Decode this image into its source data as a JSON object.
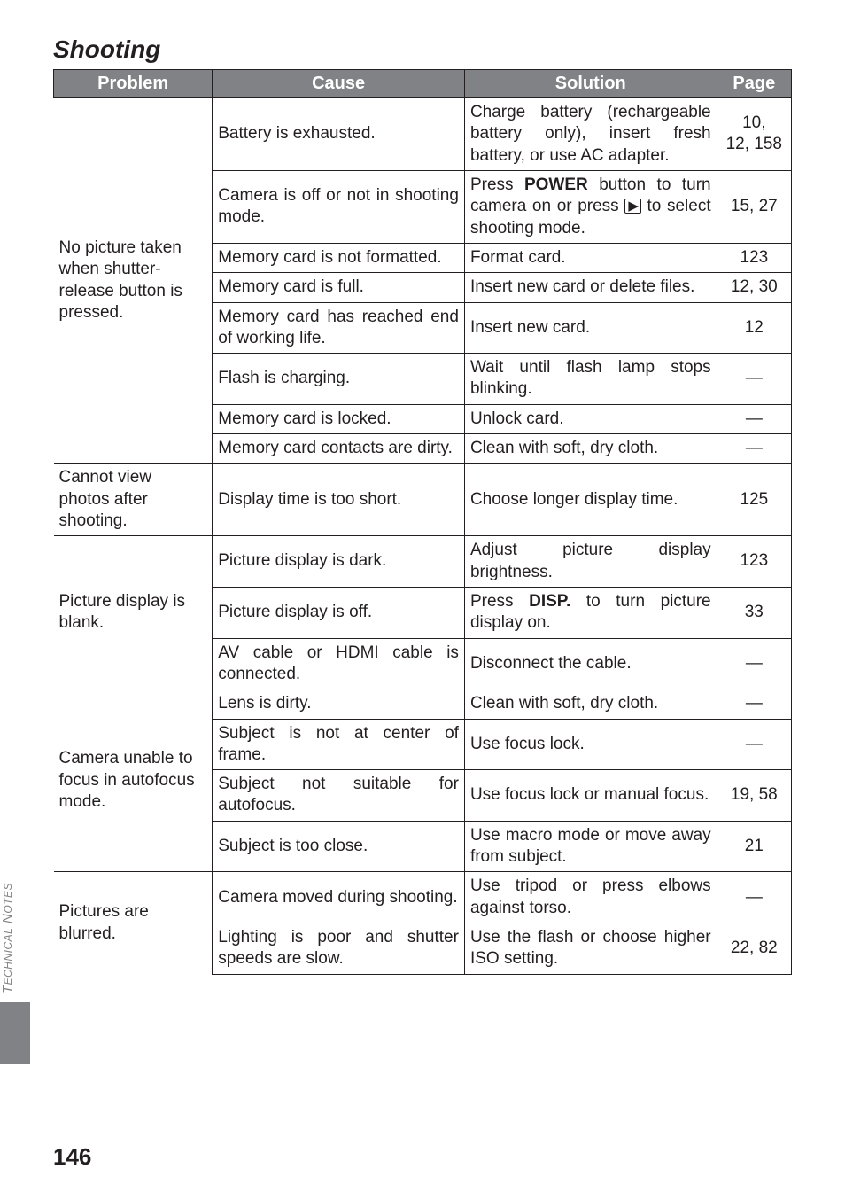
{
  "section_title": "Shooting",
  "page_number": "146",
  "side_tab_label_html": "T<span style='font-size:12px'>ECHNICAL</span> N<span style='font-size:12px'>OTES</span>",
  "headers": {
    "problem": "Problem",
    "cause": "Cause",
    "solution": "Solution",
    "page": "Page"
  },
  "groups": [
    {
      "problem": "No picture taken when shutter-release button is pressed.",
      "rows": [
        {
          "cause": "Battery is exhausted.",
          "solution": "Charge battery (rechargeable battery only), insert fresh battery, or use AC adapter.",
          "page": "10,\n12, 158"
        },
        {
          "cause": "Camera is off or not in shooting mode.",
          "solution_html": "Press <b>POWER</b> button to turn camera on or press <span class='play-icon'>▶</span> to select shooting mode.",
          "page": "15, 27"
        },
        {
          "cause": "Memory card is not formatted.",
          "solution": "Format card.",
          "page": "123"
        },
        {
          "cause": "Memory card is full.",
          "solution": "Insert new card or delete files.",
          "page": "12, 30"
        },
        {
          "cause": "Memory card has reached end of working life.",
          "solution": "Insert new card.",
          "page": "12"
        },
        {
          "cause": "Flash is charging.",
          "solution": "Wait until flash lamp stops blinking.",
          "page": "—"
        },
        {
          "cause": "Memory card is locked.",
          "solution": "Unlock card.",
          "page": "—"
        },
        {
          "cause": "Memory card contacts are dirty.",
          "solution": "Clean with soft, dry cloth.",
          "page": "—"
        }
      ]
    },
    {
      "problem": "Cannot view photos after shooting.",
      "rows": [
        {
          "cause": "Display time is too short.",
          "solution": "Choose longer display time.",
          "page": "125"
        }
      ]
    },
    {
      "problem": "Picture display is blank.",
      "rows": [
        {
          "cause": "Picture display is dark.",
          "solution": "Adjust picture display brightness.",
          "page": "123"
        },
        {
          "cause": "Picture display is off.",
          "solution_html": "Press <b>DISP.</b> to turn picture display on.",
          "page": "33"
        },
        {
          "cause": "AV cable or HDMI cable is connected.",
          "solution": "Disconnect the cable.",
          "page": "—"
        }
      ]
    },
    {
      "problem": "Camera unable to focus in autofocus mode.",
      "rows": [
        {
          "cause": "Lens is dirty.",
          "solution": "Clean with soft, dry cloth.",
          "page": "—"
        },
        {
          "cause": "Subject is not at center of frame.",
          "solution": "Use focus lock.",
          "page": "—"
        },
        {
          "cause": "Subject not suitable for autofocus.",
          "solution": "Use focus lock or manual focus.",
          "page": "19, 58"
        },
        {
          "cause": "Subject is too close.",
          "solution": "Use macro mode or move away from subject.",
          "page": "21"
        }
      ]
    },
    {
      "problem": "Pictures are blurred.",
      "rows": [
        {
          "cause": "Camera moved during shooting.",
          "solution": "Use tripod or press elbows against torso.",
          "page": "—"
        },
        {
          "cause": "Lighting is poor and shutter speeds are slow.",
          "solution": "Use the flash or choose higher ISO setting.",
          "page": "22, 82"
        }
      ]
    }
  ],
  "colors": {
    "header_bg": "#808285",
    "header_fg": "#ffffff",
    "text": "#231f20",
    "tab_bg": "#808285",
    "tab_fg": "#808285"
  }
}
